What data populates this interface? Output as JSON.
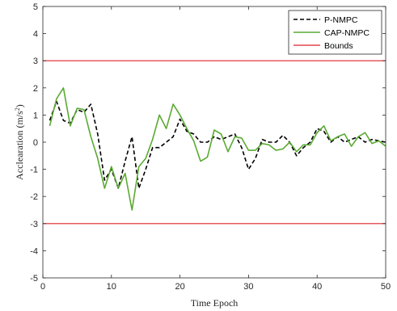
{
  "chart_data": {
    "type": "line",
    "xlabel": "Time Epoch",
    "ylabel_main": "Acclearation (m/s",
    "ylabel_sup": "2",
    "ylabel_close": ")",
    "xlim": [
      0,
      50
    ],
    "ylim": [
      -5,
      5
    ],
    "xticks": [
      0,
      10,
      20,
      30,
      40,
      50
    ],
    "yticks": [
      -5,
      -4,
      -3,
      -2,
      -1,
      0,
      1,
      2,
      3,
      4,
      5
    ],
    "grid": false,
    "legend_position": "top-right",
    "series": [
      {
        "name": "P-NMPC",
        "color": "#000000",
        "style": "dashed",
        "x": [
          1,
          2,
          3,
          4,
          5,
          6,
          7,
          8,
          9,
          10,
          11,
          12,
          13,
          14,
          15,
          16,
          17,
          18,
          19,
          20,
          21,
          22,
          23,
          24,
          25,
          26,
          27,
          28,
          29,
          30,
          31,
          32,
          33,
          34,
          35,
          36,
          37,
          38,
          39,
          40,
          41,
          42,
          43,
          44,
          45,
          46,
          47,
          48,
          49,
          50
        ],
        "y": [
          0.8,
          1.5,
          0.8,
          0.7,
          1.2,
          1.1,
          1.4,
          0.3,
          -1.4,
          -1.0,
          -1.7,
          -0.7,
          0.2,
          -1.7,
          -1.0,
          -0.2,
          -0.2,
          0.0,
          0.2,
          0.85,
          0.4,
          0.3,
          0.0,
          0.0,
          0.2,
          0.1,
          0.2,
          0.3,
          -0.2,
          -1.0,
          -0.6,
          0.1,
          0.0,
          0.0,
          0.25,
          0.0,
          -0.5,
          -0.2,
          0.0,
          0.5,
          0.4,
          0.0,
          0.2,
          0.0,
          0.1,
          0.2,
          0.0,
          0.1,
          0.05,
          0.0
        ]
      },
      {
        "name": "CAP-NMPC",
        "color": "#5aaa32",
        "style": "solid",
        "x": [
          1,
          2,
          3,
          4,
          5,
          6,
          7,
          8,
          9,
          10,
          11,
          12,
          13,
          14,
          15,
          16,
          17,
          18,
          19,
          20,
          21,
          22,
          23,
          24,
          25,
          26,
          27,
          28,
          29,
          30,
          31,
          32,
          33,
          34,
          35,
          36,
          37,
          38,
          39,
          40,
          41,
          42,
          43,
          44,
          45,
          46,
          47,
          48,
          49,
          50
        ],
        "y": [
          0.6,
          1.6,
          2.0,
          0.6,
          1.25,
          1.2,
          0.2,
          -0.6,
          -1.7,
          -0.9,
          -1.7,
          -1.15,
          -2.5,
          -0.9,
          -0.6,
          0.1,
          1.0,
          0.5,
          1.4,
          1.0,
          0.5,
          0.05,
          -0.7,
          -0.55,
          0.45,
          0.3,
          -0.35,
          0.2,
          0.15,
          -0.3,
          -0.3,
          -0.05,
          -0.1,
          -0.3,
          -0.25,
          0.0,
          -0.35,
          -0.1,
          -0.1,
          0.35,
          0.6,
          0.05,
          0.2,
          0.3,
          -0.15,
          0.2,
          0.35,
          -0.05,
          0.05,
          -0.15
        ]
      },
      {
        "name": "Bounds",
        "color": "#e0202a",
        "style": "solid",
        "bound_values": [
          3,
          -3
        ]
      }
    ]
  }
}
